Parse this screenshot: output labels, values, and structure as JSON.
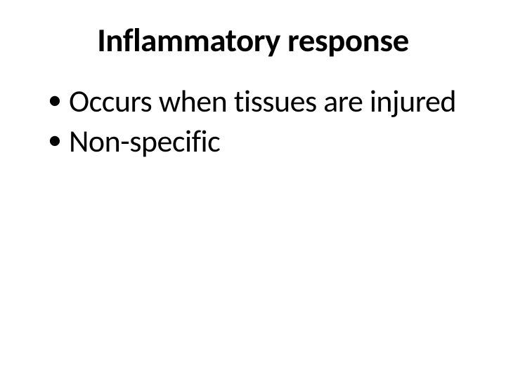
{
  "slide": {
    "title": "Inflammatory response",
    "bullets": [
      "Occurs when tissues are injured",
      "Non-specific"
    ],
    "style": {
      "background_color": "#ffffff",
      "text_color": "#000000",
      "title_fontsize": 47,
      "title_fontweight": "bold",
      "body_fontsize": 44,
      "font_family": "Calibri"
    }
  }
}
